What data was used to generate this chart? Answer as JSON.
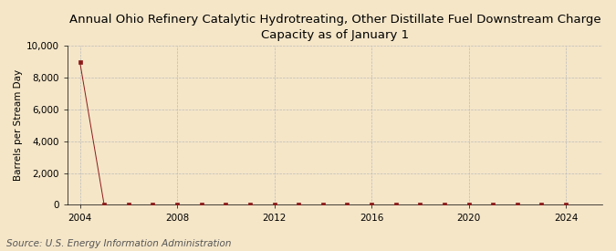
{
  "title": "Annual Ohio Refinery Catalytic Hydrotreating, Other Distillate Fuel Downstream Charge\nCapacity as of January 1",
  "ylabel": "Barrels per Stream Day",
  "source": "Source: U.S. Energy Information Administration",
  "background_color": "#f5e6c8",
  "plot_background_color": "#f5e6c8",
  "line_color": "#8b1a1a",
  "marker_color": "#8b1a1a",
  "years": [
    2004,
    2005,
    2006,
    2007,
    2008,
    2009,
    2010,
    2011,
    2012,
    2013,
    2014,
    2015,
    2016,
    2017,
    2018,
    2019,
    2020,
    2021,
    2022,
    2023,
    2024
  ],
  "values": [
    9000,
    0,
    0,
    0,
    0,
    0,
    0,
    0,
    0,
    0,
    0,
    0,
    0,
    0,
    0,
    0,
    0,
    0,
    0,
    0,
    0
  ],
  "ylim": [
    0,
    10000
  ],
  "yticks": [
    0,
    2000,
    4000,
    6000,
    8000,
    10000
  ],
  "xlim": [
    2003.5,
    2025.5
  ],
  "xticks": [
    2004,
    2008,
    2012,
    2016,
    2020,
    2024
  ],
  "grid_color": "#bbbbbb",
  "grid_style": "--",
  "title_fontsize": 9.5,
  "ylabel_fontsize": 7.5,
  "tick_fontsize": 7.5,
  "source_fontsize": 7.5
}
